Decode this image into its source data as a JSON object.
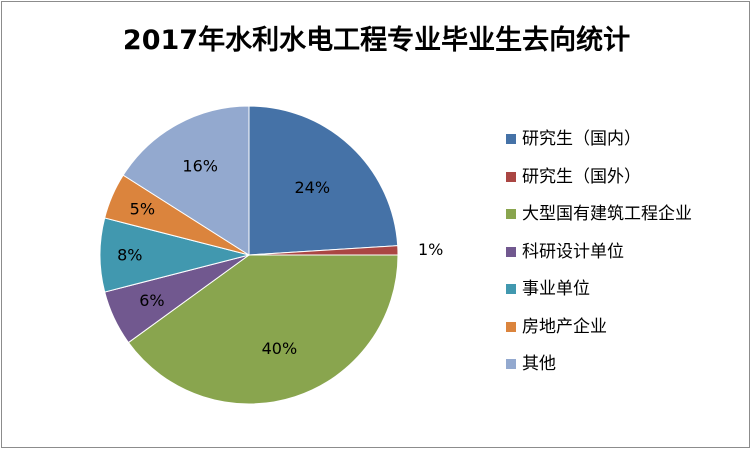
{
  "chart_data": {
    "type": "pie",
    "title": "2017年水利水电工程专业毕业生去向统计",
    "labels": [
      "研究生（国内）",
      "研究生（国外）",
      "大型国有建筑工程企业",
      "科研设计单位",
      "事业单位",
      "房地产企业",
      "其他"
    ],
    "values": [
      24,
      1,
      40,
      6,
      8,
      5,
      16
    ],
    "data_labels": [
      "24%",
      "1%",
      "40%",
      "6%",
      "8%",
      "5%",
      "16%"
    ],
    "colors": [
      "#4572a7",
      "#aa4643",
      "#89a54e",
      "#71588f",
      "#4198af",
      "#db843d",
      "#93a9cf"
    ],
    "start_angle_deg": 0,
    "direction": "clockwise",
    "legend": "right"
  }
}
